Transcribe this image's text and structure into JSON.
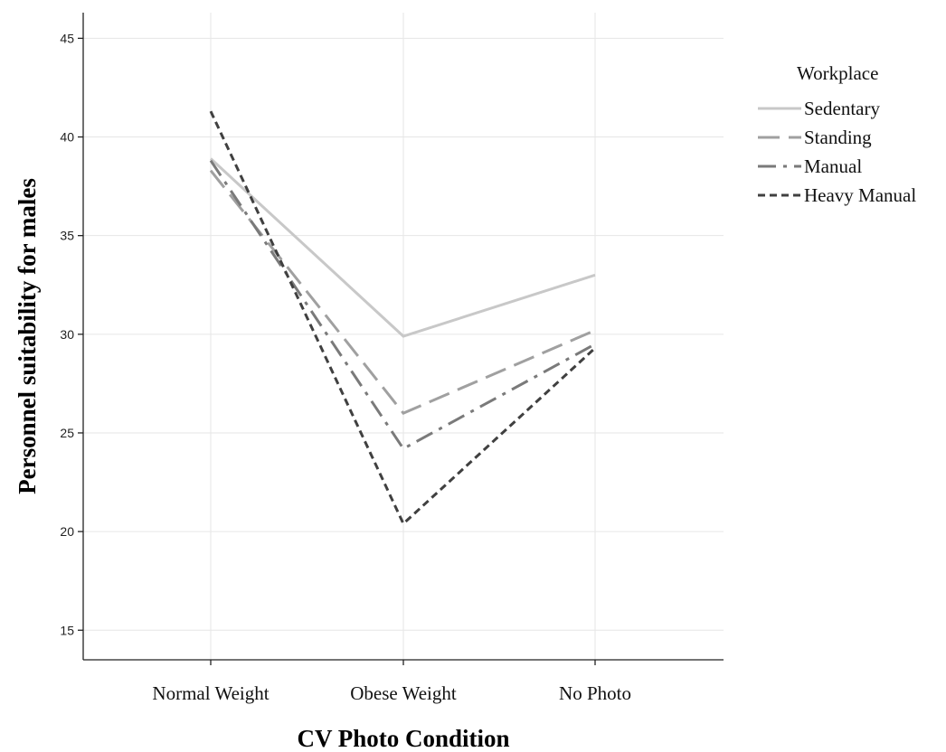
{
  "chart_data": {
    "type": "line",
    "xlabel": "CV Photo Condition",
    "ylabel": "Personnel suitability for males",
    "categories": [
      "Normal Weight",
      "Obese Weight",
      "No Photo"
    ],
    "ylim": [
      13.5,
      46.3
    ],
    "yticks": [
      15,
      20,
      25,
      30,
      35,
      40,
      45
    ],
    "grid": true,
    "legend": {
      "title": "Workplace",
      "placement": "top-right, outside plot"
    },
    "series": [
      {
        "name": "Sedentary",
        "values": [
          38.9,
          29.9,
          33.0
        ],
        "color": "#c8c8c8",
        "dash": "solid"
      },
      {
        "name": "Standing",
        "values": [
          38.3,
          26.0,
          30.2
        ],
        "color": "#a0a0a0",
        "dash": "long-dash"
      },
      {
        "name": "Manual",
        "values": [
          38.8,
          24.2,
          29.5
        ],
        "color": "#7a7a7a",
        "dash": "dash-dot"
      },
      {
        "name": "Heavy Manual",
        "values": [
          41.3,
          20.4,
          29.3
        ],
        "color": "#404040",
        "dash": "short-dash"
      }
    ]
  }
}
